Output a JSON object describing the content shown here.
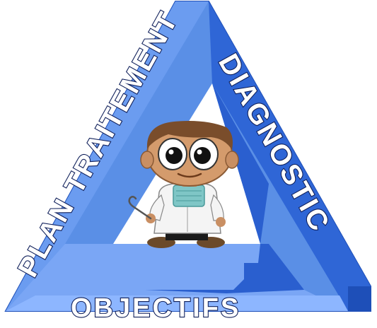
{
  "labels": {
    "left": "PLAN TRAITEMENT",
    "right": "DIAGNOSTIC",
    "bottom": "OBJECTIFS"
  },
  "colors": {
    "front_face": "#5a8fe6",
    "side_face": "#2f66d6",
    "top_face": "#8db6ff",
    "shadow_face": "#1e4fb8",
    "text_fill": "#ffffff",
    "text_stroke": "#0f1f5a"
  },
  "illustration": {
    "subject": "cartoon dentist character",
    "items": [
      "mask",
      "dental-probe",
      "white-coat"
    ]
  }
}
